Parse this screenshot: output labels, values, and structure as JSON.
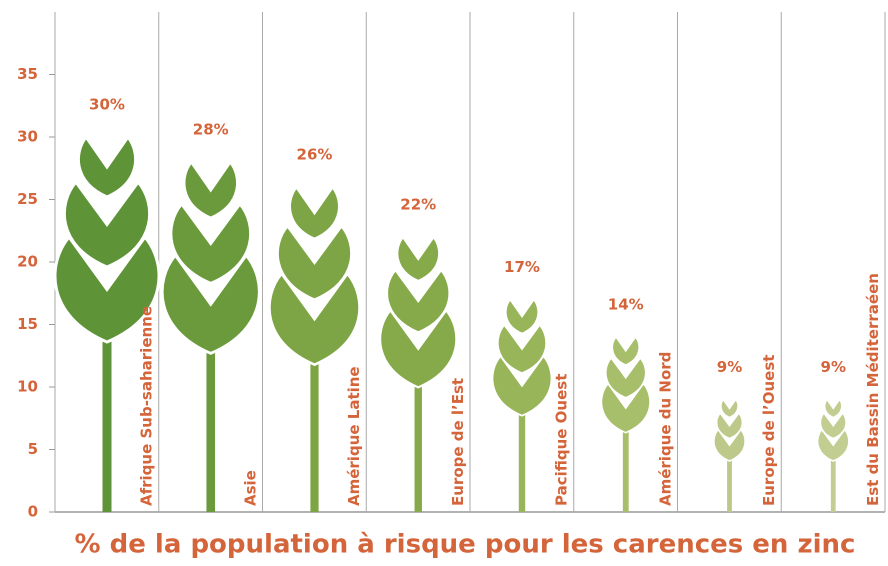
{
  "chart_data": {
    "type": "pictograph",
    "title": "% de la population à risque pour les carences en zinc",
    "categories": [
      "Afrique Sub-saharienne",
      "Asie",
      "Amérique Latine",
      "Europe de l’Est",
      "Pacifique Ouest",
      "Amérique du Nord",
      "Europe de l’Ouest",
      "Est du Bassin Méditerraéen"
    ],
    "values": [
      30,
      28,
      26,
      22,
      17,
      14,
      9,
      9
    ],
    "value_labels": [
      "30%",
      "28%",
      "26%",
      "22%",
      "17%",
      "14%",
      "9%",
      "9%"
    ],
    "colors": [
      "#5f9338",
      "#6b9a3c",
      "#7ea545",
      "#86aa4a",
      "#98b55a",
      "#a7be6a",
      "#bcc98a",
      "#c2cd92"
    ],
    "ylim": [
      0,
      40
    ],
    "yticks": [
      0,
      5,
      10,
      15,
      20,
      25,
      30,
      35
    ]
  }
}
